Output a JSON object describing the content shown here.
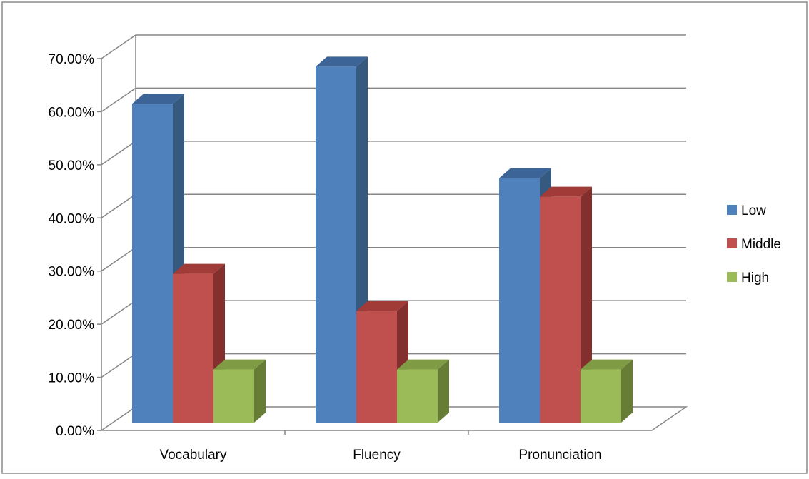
{
  "chart_data": {
    "type": "bar",
    "subtype": "3d-clustered-column",
    "title": "",
    "xlabel": "",
    "ylabel": "",
    "categories": [
      "Vocabulary",
      "Fluency",
      "Pronunciation"
    ],
    "series": [
      {
        "name": "Low",
        "values": [
          0.6,
          0.67,
          0.46
        ],
        "color": "#4f81bd",
        "side_color": "#36597f",
        "top_color": "#3c6496"
      },
      {
        "name": "Middle",
        "values": [
          0.28,
          0.21,
          0.425
        ],
        "color": "#c0504d",
        "side_color": "#822f2d",
        "top_color": "#a03b38"
      },
      {
        "name": "High",
        "values": [
          0.1,
          0.1,
          0.1
        ],
        "color": "#9bbb59",
        "side_color": "#677d35",
        "top_color": "#7f9b44"
      }
    ],
    "ylim": [
      0,
      0.7
    ],
    "yticks": [
      "0.00%",
      "10.00%",
      "20.00%",
      "30.00%",
      "40.00%",
      "50.00%",
      "60.00%",
      "70.00%"
    ],
    "grid": true,
    "legend_position": "right"
  }
}
